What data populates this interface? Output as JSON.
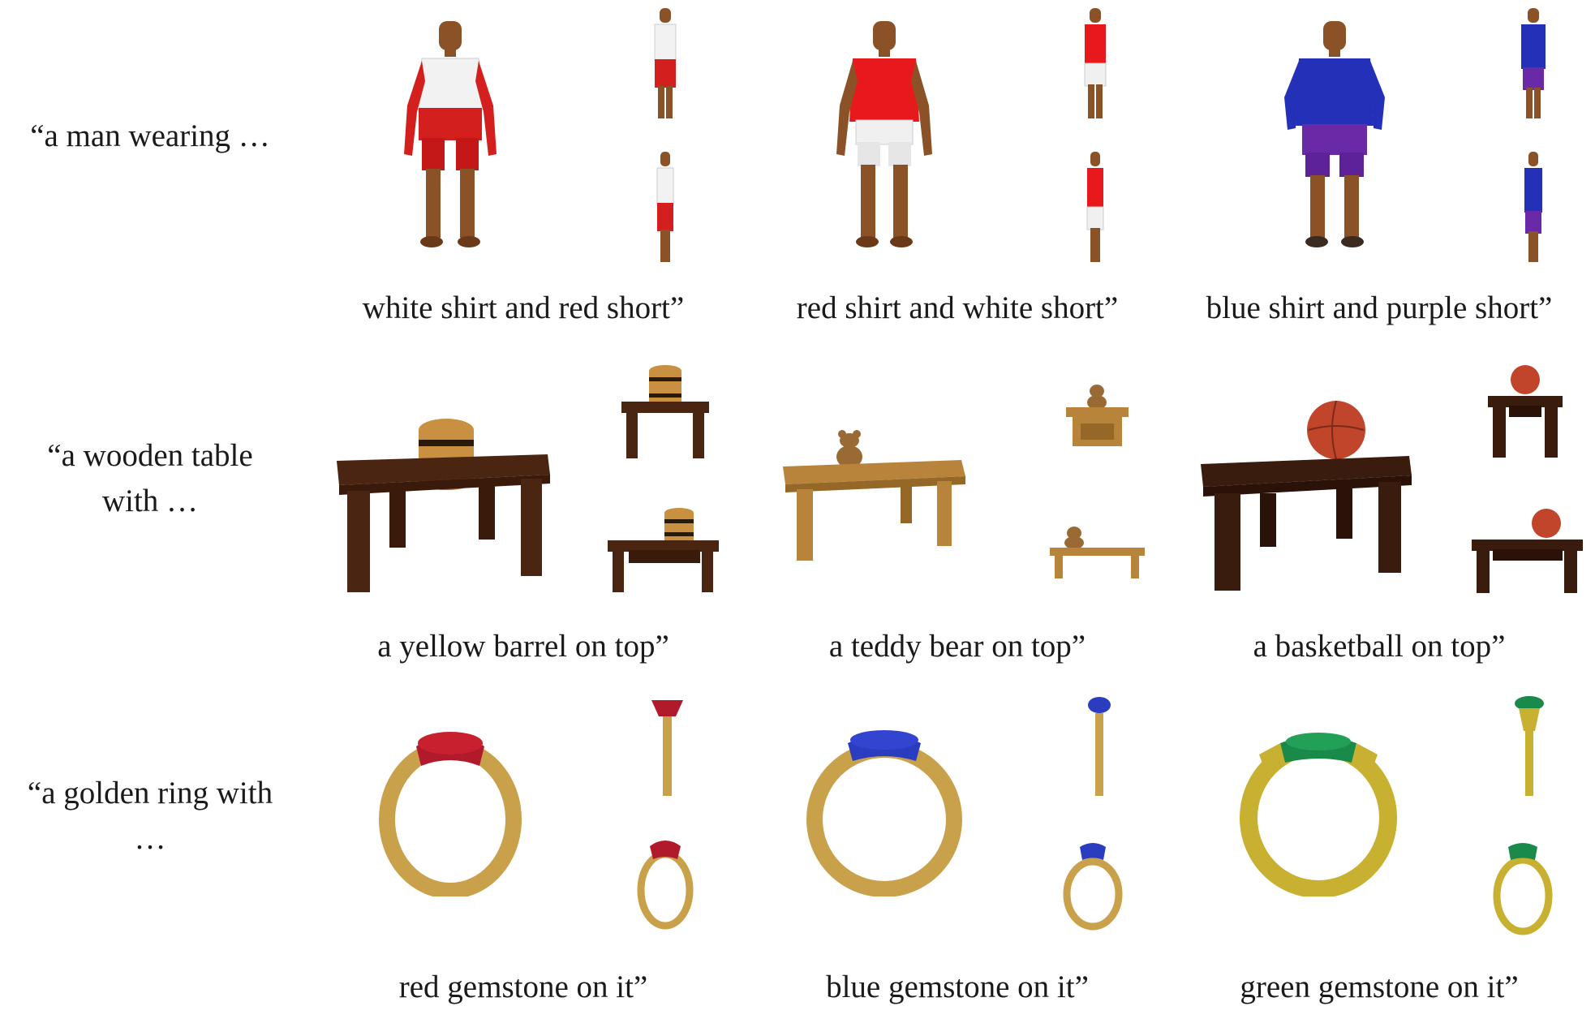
{
  "rows": [
    {
      "prompt_lines": [
        "“a man wearing …"
      ],
      "captions": [
        "white shirt and red short”",
        "red shirt and white short”",
        "blue shirt and purple short”"
      ],
      "colors": [
        {
          "top": "#f2f2f2",
          "bottom": "#d41f1f"
        },
        {
          "top": "#e8191c",
          "bottom": "#f0f0f0"
        },
        {
          "top": "#2530b8",
          "bottom": "#6a2aa8"
        }
      ]
    },
    {
      "prompt_lines": [
        "“a wooden table",
        "with …"
      ],
      "captions": [
        "a yellow barrel on top”",
        "a teddy bear on top”",
        "a basketball on top”"
      ],
      "colors": [
        {
          "top": "#4a2512",
          "bottom": "#b07a3a"
        },
        {
          "top": "#b8843c",
          "bottom": "#8a5a2a"
        },
        {
          "top": "#3a1c0f",
          "bottom": "#c0452a"
        }
      ]
    },
    {
      "prompt_lines": [
        "“a golden ring with",
        "…"
      ],
      "captions": [
        "red gemstone on it”",
        "blue gemstone on it”",
        "green gemstone on it”"
      ],
      "colors": [
        {
          "top": "#c9a14a",
          "bottom": "#b01a2a"
        },
        {
          "top": "#c9a14a",
          "bottom": "#2a3cc0"
        },
        {
          "top": "#c8b030",
          "bottom": "#1a8a4a"
        }
      ]
    }
  ]
}
